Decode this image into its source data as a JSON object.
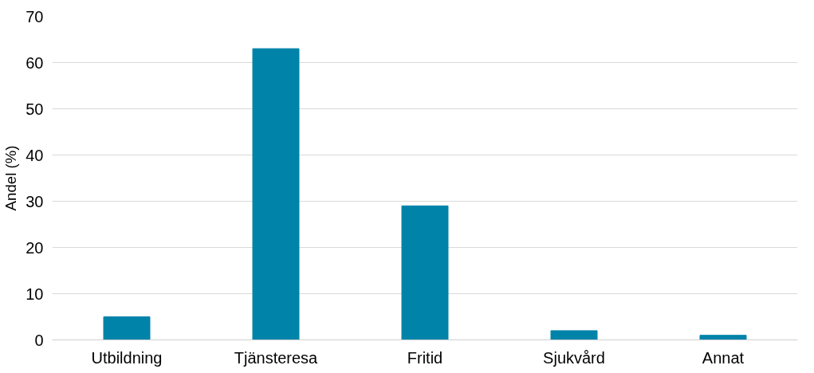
{
  "chart_data": {
    "type": "bar",
    "ylabel": "Andel (%)",
    "categories": [
      "Utbildning",
      "Tjänsteresa",
      "Fritid",
      "Sjukvård",
      "Annat"
    ],
    "values": [
      5,
      63,
      29,
      2,
      1
    ],
    "color": "#0083a9",
    "ylim": [
      0,
      70
    ],
    "yticks": [
      0,
      10,
      20,
      30,
      40,
      50,
      60,
      70
    ],
    "grid": "y"
  }
}
